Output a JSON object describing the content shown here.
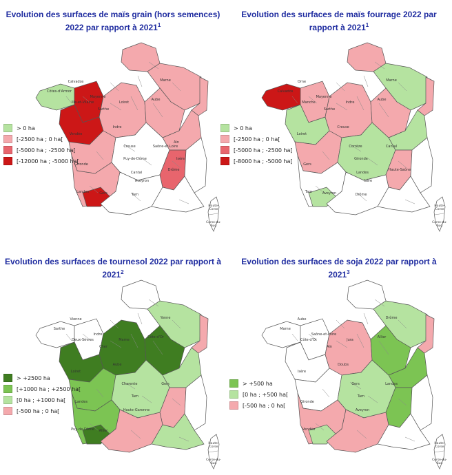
{
  "colors": {
    "green_light": "#b5e3a0",
    "green_mid": "#7cc453",
    "green_dark": "#3f7d21",
    "pink_light": "#f4a9ad",
    "red_mid": "#e8656d",
    "red_dark": "#cc1717",
    "white": "#ffffff",
    "title_blue": "#1f2ca0",
    "border": "#555555"
  },
  "corsica_label": "Haute-\nCorse",
  "corsica_label2": "Corse-du-\nSud",
  "panels": [
    {
      "title_text": "Evolution des surfaces de maïs grain (hors semences) 2022 par rapport à 2021",
      "title_sup": "1",
      "legend": [
        {
          "label": "> 0 ha",
          "color": "#b5e3a0"
        },
        {
          "label": "[-2500 ha ; 0 ha[",
          "color": "#f4a9ad"
        },
        {
          "label": "[-5000 ha ; -2500 ha[",
          "color": "#e8656d"
        },
        {
          "label": "[-12000 ha ; -5000 ha[",
          "color": "#cc1717"
        }
      ],
      "regions": {
        "north": "pink",
        "northeast": "pink",
        "brittany_w": "green",
        "brittany_e": "dark",
        "pays_loire": "dark",
        "center": "pink",
        "east": "pink",
        "burgundy": "pink",
        "alsace": "pink",
        "west_coast": "pink",
        "massif": "white",
        "rhone": "mid",
        "southwest": "pink",
        "landes_hot": "dark",
        "south": "white",
        "alps": "white",
        "med": "white"
      },
      "department_labels": [
        "Côtes-d'Armor",
        "Calvados",
        "Ille-et-Vilaine",
        "Mayenne",
        "Sarthe",
        "Vendée",
        "Marne",
        "Aube",
        "Loiret",
        "Indre",
        "Creuse",
        "Saône-et-Loire",
        "Puy-de-Dôme",
        "Cantal",
        "Gironde",
        "Landes",
        "Gers",
        "Tarn",
        "Aveyron",
        "Drôme",
        "Isère",
        "Ain"
      ]
    },
    {
      "title_text": "Evolution des surfaces de maïs fourrage 2022 par rapport à 2021",
      "title_sup": "1",
      "legend": [
        {
          "label": "> 0 ha",
          "color": "#b5e3a0"
        },
        {
          "label": "[-2500 ha ; 0 ha[",
          "color": "#f4a9ad"
        },
        {
          "label": "[-5000 ha ; -2500 ha[",
          "color": "#e8656d"
        },
        {
          "label": "[-8000 ha ; -5000 ha[",
          "color": "#cc1717"
        }
      ],
      "regions": {
        "north": "pink",
        "northeast": "green",
        "brittany_w": "dark",
        "brittany_e": "pink",
        "pays_loire": "green",
        "center": "pink",
        "east": "green",
        "burgundy": "pink",
        "alsace": "pink",
        "west_coast": "pink",
        "massif": "green",
        "rhone": "pink",
        "southwest": "white",
        "landes_hot": "green",
        "south": "white",
        "alps": "white",
        "med": "white"
      },
      "department_labels": [
        "Calvados",
        "Orne",
        "Manche",
        "Mayenne",
        "Sarthe",
        "Loiret",
        "Marne",
        "Aube",
        "Indre",
        "Creuse",
        "Corrèze",
        "Cantal",
        "Gironde",
        "Landes",
        "Gers",
        "Tarn",
        "Aveyron",
        "Drôme",
        "Isère",
        "Haute-Saône"
      ]
    },
    {
      "title_text": "Evolution des surfaces de tournesol 2022 par rapport à 2021",
      "title_sup": "2",
      "legend": [
        {
          "label": "> +2500 ha",
          "color": "#3f7d21"
        },
        {
          "label": "[+1000 ha ; +2500 ha[",
          "color": "#7cc453"
        },
        {
          "label": "[0 ha ; +1000 ha[",
          "color": "#b5e3a0"
        },
        {
          "label": "[-500 ha ; 0 ha[",
          "color": "#f4a9ad"
        }
      ],
      "regions": {
        "north": "white",
        "northeast": "lgreen",
        "brittany_w": "white",
        "brittany_e": "white",
        "pays_loire": "dark",
        "center": "dark",
        "east": "lgreen",
        "burgundy": "dark",
        "alsace": "pink",
        "west_coast": "mid",
        "massif": "lgreen",
        "rhone": "pink",
        "southwest": "mid",
        "landes_hot": "dark",
        "south": "pink",
        "alps": "white",
        "med": "lgreen"
      },
      "department_labels": [
        "Sarthe",
        "Vienne",
        "Deux-Sèvres",
        "Indre",
        "Cher",
        "Loiret",
        "Yonne",
        "Côte-d'Or",
        "Marne",
        "Aube",
        "Charente",
        "Gers",
        "Tarn",
        "Haute-Garonne",
        "Landes",
        "Puy-de-Dôme",
        "Allier"
      ]
    },
    {
      "title_text": "Evolution des surfaces de soja 2022 par rapport à 2021",
      "title_sup": "3",
      "legend": [
        {
          "label": "> +500 ha",
          "color": "#7cc453"
        },
        {
          "label": "[0 ha ; +500 ha[",
          "color": "#b5e3a0"
        },
        {
          "label": "[-500 ha ; 0 ha[",
          "color": "#f4a9ad"
        }
      ],
      "regions": {
        "north": "white",
        "northeast": "lgreen",
        "brittany_w": "white",
        "brittany_e": "white",
        "pays_loire": "white",
        "center": "pink",
        "east": "mid",
        "burgundy": "mid",
        "alsace": "pink",
        "west_coast": "white",
        "massif": "lgreen",
        "rhone": "mid",
        "southwest": "pink",
        "landes_hot": "lgreen",
        "south": "pink",
        "alps": "white",
        "med": "white"
      },
      "department_labels": [
        "Marne",
        "Aube",
        "Côte-d'Or",
        "Saône-et-Loire",
        "Ain",
        "Isère",
        "Drôme",
        "Allier",
        "Jura",
        "Doubs",
        "Gers",
        "Landes",
        "Tarn",
        "Aveyron",
        "Gironde",
        "Vendée"
      ]
    }
  ]
}
